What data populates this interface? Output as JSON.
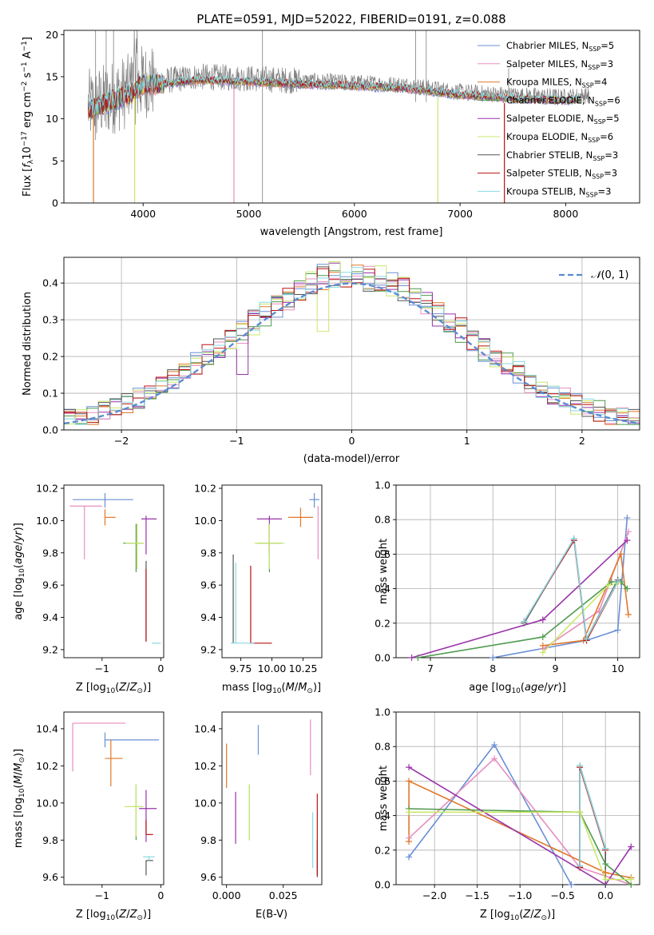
{
  "title": "PLATE=0591, MJD=52022, FIBERID=0191, z=0.088",
  "colors": [
    "#6a8fd6",
    "#e88ebf",
    "#e0782a",
    "#4f9a4d",
    "#9933aa",
    "#c9e86a",
    "#555555",
    "#bb1111",
    "#88d8e0"
  ],
  "spectrum_color": "#7f7f7f",
  "chart_data": [
    {
      "type": "line",
      "panel": "spectrum",
      "xlabel": "wavelength [Angstrom, rest frame]",
      "ylabel": "Flux [f_λ 10^-17 erg cm^-2 s^-1 A^-1]",
      "xlim": [
        3250,
        8700
      ],
      "ylim": [
        0,
        20.5
      ],
      "xticks": [
        4000,
        5000,
        6000,
        7000,
        8000
      ],
      "yticks": [
        0,
        5,
        10,
        15,
        20
      ],
      "legend_position": "upper right",
      "series": [
        {
          "name": "Chabrier MILES, N_SSP=5"
        },
        {
          "name": "Salpeter MILES, N_SSP=3"
        },
        {
          "name": "Kroupa MILES, N_SSP=4"
        },
        {
          "name": "Chabrier ELODIE, N_SSP=6"
        },
        {
          "name": "Salpeter ELODIE, N_SSP=5"
        },
        {
          "name": "Kroupa ELODIE, N_SSP=6"
        },
        {
          "name": "Chabrier STELIB, N_SSP=3"
        },
        {
          "name": "Salpeter STELIB, N_SSP=3"
        },
        {
          "name": "Kroupa STELIB, N_SSP=3"
        }
      ],
      "continuum_points": [
        [
          3500,
          11.5
        ],
        [
          3700,
          12.5
        ],
        [
          3900,
          13.5
        ],
        [
          4000,
          14.5
        ],
        [
          4200,
          14.5
        ],
        [
          4500,
          15.0
        ],
        [
          5000,
          14.8
        ],
        [
          5500,
          14.5
        ],
        [
          6000,
          14.3
        ],
        [
          6500,
          14.0
        ],
        [
          7000,
          13.2
        ],
        [
          7500,
          12.8
        ],
        [
          8000,
          12.6
        ],
        [
          8200,
          12.8
        ]
      ],
      "absorption_features": [
        [
          3530,
          0
        ],
        [
          3920,
          0
        ],
        [
          4860,
          0
        ],
        [
          6790,
          0
        ],
        [
          7420,
          0
        ]
      ]
    },
    {
      "type": "line",
      "panel": "residual_distribution",
      "xlabel": "(data-model)/error",
      "ylabel": "Normed distribution",
      "xlim": [
        -2.5,
        2.5
      ],
      "ylim": [
        0,
        0.47
      ],
      "xticks": [
        -2,
        -1,
        0,
        1,
        2
      ],
      "yticks": [
        0.0,
        0.1,
        0.2,
        0.3,
        0.4
      ],
      "grid": true,
      "reference_curve": "N(0,1)",
      "legend_position": "upper right",
      "histogram_bin_width": 0.1
    },
    {
      "type": "scatter",
      "panel": "age_vs_Z",
      "xlabel": "Z [log10(Z/Z⊙)]",
      "ylabel": "age [log10(age/yr)]",
      "xlim": [
        -1.65,
        0.05
      ],
      "ylim": [
        9.15,
        10.22
      ],
      "xticks": [
        -1,
        0
      ],
      "yticks": [
        9.2,
        9.4,
        9.6,
        9.8,
        10.0,
        10.2
      ],
      "points": [
        {
          "x": -0.95,
          "y": 10.13,
          "xerr": [
            0.55,
            0.48
          ],
          "yerr": [
            0.05,
            0.04
          ]
        },
        {
          "x": -1.3,
          "y": 10.09,
          "xerr": [
            0.25,
            0.3
          ],
          "yerr": [
            0.33,
            0
          ]
        },
        {
          "x": -0.95,
          "y": 10.02,
          "xerr": [
            0.0,
            0.18
          ],
          "yerr": [
            0.05,
            0.05
          ]
        },
        {
          "x": -0.42,
          "y": 9.86,
          "xerr": [
            0.22,
            0.12
          ],
          "yerr": [
            0.18,
            0.12
          ]
        },
        {
          "x": -0.25,
          "y": 10.01,
          "xerr": [
            0.08,
            0.18
          ],
          "yerr": [
            0.22,
            0.02
          ]
        },
        {
          "x": -0.4,
          "y": 9.86,
          "xerr": [
            0.2,
            0.12
          ],
          "yerr": [
            0.16,
            0.12
          ]
        },
        {
          "x": -0.25,
          "y": 9.25,
          "xerr": [
            0,
            0
          ],
          "yerr": [
            0,
            0.5
          ]
        },
        {
          "x": -0.25,
          "y": 9.25,
          "xerr": [
            0,
            0
          ],
          "yerr": [
            0,
            0.45
          ]
        },
        {
          "x": -0.15,
          "y": 9.24,
          "xerr": [
            0.0,
            0.15
          ],
          "yerr": [
            0,
            0
          ]
        }
      ]
    },
    {
      "type": "scatter",
      "panel": "age_vs_mass",
      "xlabel": "mass [log10(M/M⊙)]",
      "ylabel": "",
      "xlim": [
        9.6,
        10.4
      ],
      "ylim": [
        9.15,
        10.22
      ],
      "xticks": [
        9.75,
        10.0,
        10.25
      ],
      "xtick_labels": [
        "9.75",
        "10.00",
        "10.25"
      ],
      "yticks": [
        9.2,
        9.4,
        9.6,
        9.8,
        10.0,
        10.2
      ],
      "points": [
        {
          "x": 10.34,
          "y": 10.13,
          "xerr": [
            0.04,
            0.04
          ],
          "yerr": [
            0.05,
            0.04
          ]
        },
        {
          "x": 10.37,
          "y": 10.09,
          "xerr": [
            0,
            0
          ],
          "yerr": [
            0.33,
            0
          ]
        },
        {
          "x": 10.23,
          "y": 10.02,
          "xerr": [
            0.1,
            0.1
          ],
          "yerr": [
            0.06,
            0.06
          ]
        },
        {
          "x": 9.98,
          "y": 9.86,
          "xerr": [
            0.1,
            0.1
          ],
          "yerr": [
            0.18,
            0.12
          ]
        },
        {
          "x": 9.98,
          "y": 10.01,
          "xerr": [
            0.1,
            0.1
          ],
          "yerr": [
            0.22,
            0.02
          ]
        },
        {
          "x": 9.98,
          "y": 9.86,
          "xerr": [
            0.12,
            0.12
          ],
          "yerr": [
            0.16,
            0.12
          ]
        },
        {
          "x": 9.69,
          "y": 9.24,
          "xerr": [
            0,
            0
          ],
          "yerr": [
            0,
            0.55
          ]
        },
        {
          "x": 9.83,
          "y": 9.24,
          "xerr": [
            0,
            0.17
          ],
          "yerr": [
            0,
            0.48
          ]
        },
        {
          "x": 9.71,
          "y": 9.24,
          "xerr": [
            0.04,
            0.15
          ],
          "yerr": [
            0,
            0.5
          ]
        }
      ]
    },
    {
      "type": "line",
      "panel": "mass_weight_vs_age",
      "xlabel": "age [log10(age/yr)]",
      "ylabel": "mass weight",
      "xlim": [
        6.45,
        10.35
      ],
      "ylim": [
        0,
        1.0
      ],
      "xticks": [
        7,
        8,
        9,
        10
      ],
      "yticks": [
        0.0,
        0.2,
        0.4,
        0.6,
        0.8,
        1.0
      ],
      "grid": true,
      "series": [
        {
          "points": [
            [
              8.0,
              0.0
            ],
            [
              9.5,
              0.1
            ],
            [
              10.0,
              0.16
            ],
            [
              10.15,
              0.81
            ]
          ]
        },
        {
          "points": [
            [
              8.8,
              0.05
            ],
            [
              9.7,
              0.27
            ],
            [
              10.17,
              0.73
            ]
          ]
        },
        {
          "points": [
            [
              8.8,
              0.07
            ],
            [
              9.45,
              0.1
            ],
            [
              10.05,
              0.6
            ],
            [
              10.17,
              0.25
            ]
          ]
        },
        {
          "points": [
            [
              6.8,
              0.0
            ],
            [
              8.8,
              0.12
            ],
            [
              9.9,
              0.44
            ],
            [
              10.05,
              0.44
            ],
            [
              10.15,
              0.4
            ]
          ]
        },
        {
          "points": [
            [
              6.7,
              0.0
            ],
            [
              8.8,
              0.22
            ],
            [
              10.15,
              0.68
            ]
          ]
        },
        {
          "points": [
            [
              8.8,
              0.03
            ],
            [
              9.85,
              0.42
            ],
            [
              10.0,
              0.43
            ]
          ]
        },
        {
          "points": [
            [
              8.5,
              0.2
            ],
            [
              9.3,
              0.69
            ],
            [
              9.5,
              0.11
            ],
            [
              10.0,
              0.45
            ]
          ]
        },
        {
          "points": [
            [
              8.5,
              0.21
            ],
            [
              9.3,
              0.68
            ],
            [
              9.5,
              0.1
            ],
            [
              10.0,
              0.44
            ]
          ]
        },
        {
          "points": [
            [
              8.5,
              0.21
            ],
            [
              9.3,
              0.69
            ],
            [
              9.5,
              0.11
            ],
            [
              10.0,
              0.44
            ]
          ]
        }
      ]
    },
    {
      "type": "scatter",
      "panel": "mass_vs_Z",
      "xlabel": "Z [log10(Z/Z⊙)]",
      "ylabel": "mass [log10(M/M⊙)]",
      "xlim": [
        -1.65,
        0.05
      ],
      "ylim": [
        9.56,
        10.49
      ],
      "xticks": [
        -1,
        0
      ],
      "yticks": [
        9.6,
        9.8,
        10.0,
        10.2,
        10.4
      ],
      "points": [
        {
          "x": -0.95,
          "y": 10.34,
          "xerr": [
            0.0,
            0.92
          ],
          "yerr": [
            0.04,
            0.04
          ]
        },
        {
          "x": -1.5,
          "y": 10.43,
          "xerr": [
            0,
            0.9
          ],
          "yerr": [
            0.26,
            0
          ]
        },
        {
          "x": -0.85,
          "y": 10.24,
          "xerr": [
            0.1,
            0.2
          ],
          "yerr": [
            0.15,
            0.1
          ]
        },
        {
          "x": -0.42,
          "y": 9.98,
          "xerr": [
            0.15,
            0.12
          ],
          "yerr": [
            0.18,
            0.12
          ]
        },
        {
          "x": -0.25,
          "y": 9.97,
          "xerr": [
            0.12,
            0.18
          ],
          "yerr": [
            0.18,
            0.1
          ]
        },
        {
          "x": -0.42,
          "y": 9.98,
          "xerr": [
            0.2,
            0.12
          ],
          "yerr": [
            0.16,
            0.12
          ]
        },
        {
          "x": -0.25,
          "y": 9.69,
          "xerr": [
            0,
            0.12
          ],
          "yerr": [
            0.08,
            0
          ]
        },
        {
          "x": -0.25,
          "y": 9.83,
          "xerr": [
            0,
            0.12
          ],
          "yerr": [
            0,
            0.08
          ]
        },
        {
          "x": -0.2,
          "y": 9.71,
          "xerr": [
            0.1,
            0.1
          ],
          "yerr": [
            0.02,
            0
          ]
        }
      ]
    },
    {
      "type": "scatter",
      "panel": "mass_vs_EBV",
      "xlabel": "E(B-V)",
      "ylabel": "",
      "xlim": [
        -0.002,
        0.042
      ],
      "ylim": [
        9.56,
        10.49
      ],
      "xticks": [
        0.0,
        0.025
      ],
      "xtick_labels": [
        "0.000",
        "0.025"
      ],
      "yticks": [
        9.6,
        9.8,
        10.0,
        10.2,
        10.4
      ],
      "points": [
        {
          "x": 0.014,
          "y": 10.34,
          "yerr": [
            0.08,
            0.08
          ]
        },
        {
          "x": 0.037,
          "y": 10.3,
          "yerr": [
            0.15,
            0.15
          ]
        },
        {
          "x": 0.0,
          "y": 10.2,
          "yerr": [
            0.12,
            0.12
          ]
        },
        {
          "x": 0.01,
          "y": 9.98,
          "yerr": [
            0.18,
            0.12
          ]
        },
        {
          "x": 0.004,
          "y": 9.92,
          "yerr": [
            0.14,
            0.14
          ]
        },
        {
          "x": 0.01,
          "y": 9.98,
          "yerr": [
            0.18,
            0.12
          ]
        },
        {
          "x": 0.04,
          "y": 9.7,
          "yerr": [
            0.1,
            0.1
          ]
        },
        {
          "x": 0.04,
          "y": 9.83,
          "yerr": [
            0.22,
            0.22
          ]
        },
        {
          "x": 0.038,
          "y": 9.8,
          "yerr": [
            0.15,
            0.15
          ]
        }
      ]
    },
    {
      "type": "line",
      "panel": "mass_weight_vs_Z",
      "xlabel": "Z [log10(Z/Z⊙)]",
      "ylabel": "mass weight",
      "xlim": [
        -2.45,
        0.4
      ],
      "ylim": [
        0,
        1.0
      ],
      "xticks": [
        -2.0,
        -1.5,
        -1.0,
        -0.5,
        0.0
      ],
      "xtick_labels": [
        "−2.0",
        "−1.5",
        "−1.0",
        "−0.5",
        "0.0"
      ],
      "yticks": [
        0.0,
        0.2,
        0.4,
        0.6,
        0.8,
        1.0
      ],
      "grid": true,
      "series": [
        {
          "points": [
            [
              -2.3,
              0.16
            ],
            [
              -1.3,
              0.81
            ],
            [
              -0.4,
              0.0
            ],
            [
              0.0,
              0.0
            ]
          ]
        },
        {
          "points": [
            [
              -2.3,
              0.27
            ],
            [
              -1.3,
              0.73
            ],
            [
              -0.3,
              0.1
            ],
            [
              0.3,
              0.0
            ]
          ]
        },
        {
          "points": [
            [
              -2.3,
              0.25
            ],
            [
              -2.3,
              0.6
            ],
            [
              0.0,
              0.07
            ],
            [
              0.3,
              0.04
            ]
          ]
        },
        {
          "points": [
            [
              -2.3,
              0.44
            ],
            [
              -0.3,
              0.42
            ],
            [
              0.0,
              0.12
            ],
            [
              0.3,
              0.0
            ]
          ]
        },
        {
          "points": [
            [
              -2.3,
              0.68
            ],
            [
              0.0,
              0.0
            ],
            [
              0.3,
              0.22
            ]
          ]
        },
        {
          "points": [
            [
              -2.3,
              0.42
            ],
            [
              -0.3,
              0.42
            ],
            [
              0.0,
              0.03
            ],
            [
              0.3,
              0.03
            ]
          ]
        },
        {
          "points": [
            [
              -0.3,
              0.1
            ],
            [
              -0.3,
              0.69
            ],
            [
              0.0,
              0.21
            ],
            [
              0.0,
              0.0
            ]
          ]
        },
        {
          "points": [
            [
              -0.3,
              0.1
            ],
            [
              -0.3,
              0.68
            ],
            [
              0.0,
              0.2
            ]
          ]
        },
        {
          "points": [
            [
              -0.3,
              0.11
            ],
            [
              -0.3,
              0.69
            ],
            [
              0.0,
              0.21
            ]
          ]
        }
      ]
    }
  ]
}
